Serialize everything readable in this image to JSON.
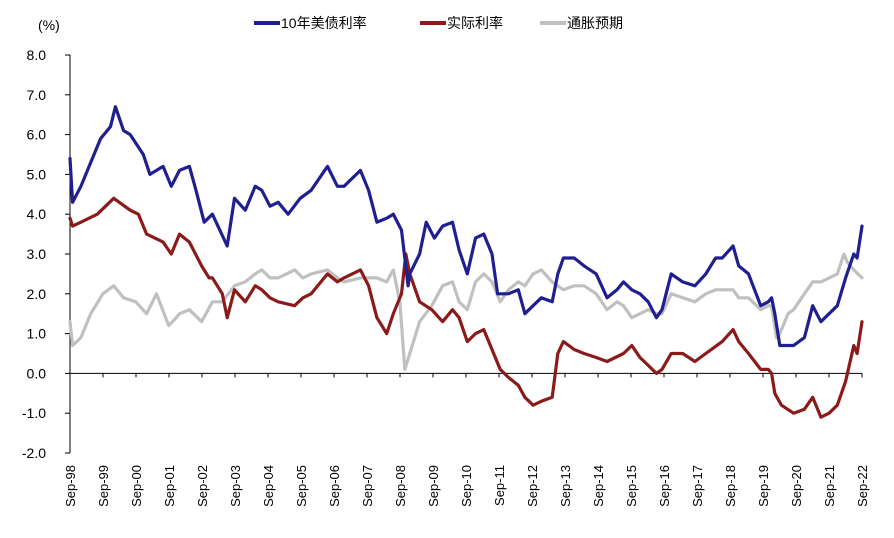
{
  "chart_data": {
    "type": "line",
    "title": "",
    "ylabel": "(%)",
    "xlabel": "",
    "ylim": [
      -2.0,
      8.0
    ],
    "yticks": [
      "8.0",
      "7.0",
      "6.0",
      "5.0",
      "4.0",
      "3.0",
      "2.0",
      "1.0",
      "0.0",
      "-1.0",
      "-2.0"
    ],
    "ytick_values": [
      8,
      7,
      6,
      5,
      4,
      3,
      2,
      1,
      0,
      -1,
      -2
    ],
    "negative_tick_color": "#e8262a",
    "categories": [
      "Sep-98",
      "Sep-99",
      "Sep-00",
      "Sep-01",
      "Sep-02",
      "Sep-03",
      "Sep-04",
      "Sep-05",
      "Sep-06",
      "Sep-07",
      "Sep-08",
      "Sep-09",
      "Sep-10",
      "Sep-11",
      "Sep-12",
      "Sep-13",
      "Sep-14",
      "Sep-15",
      "Sep-16",
      "Sep-17",
      "Sep-18",
      "Sep-19",
      "Sep-20",
      "Sep-21",
      "Sep-22"
    ],
    "x_start": 1998.67,
    "x_end": 2022.75,
    "legend": [
      "10年美债利率",
      "实际利率",
      "通胀预期"
    ],
    "legend_position": "top-center",
    "series": [
      {
        "name": "10年美债利率",
        "color": "#1f1f8f",
        "points": [
          [
            1998.67,
            5.4
          ],
          [
            1998.75,
            4.3
          ],
          [
            1999.0,
            4.7
          ],
          [
            1999.3,
            5.3
          ],
          [
            1999.6,
            5.9
          ],
          [
            1999.9,
            6.2
          ],
          [
            2000.05,
            6.7
          ],
          [
            2000.3,
            6.1
          ],
          [
            2000.5,
            6.0
          ],
          [
            2000.9,
            5.5
          ],
          [
            2001.1,
            5.0
          ],
          [
            2001.5,
            5.2
          ],
          [
            2001.75,
            4.7
          ],
          [
            2002.0,
            5.1
          ],
          [
            2002.3,
            5.2
          ],
          [
            2002.5,
            4.6
          ],
          [
            2002.75,
            3.8
          ],
          [
            2003.0,
            4.0
          ],
          [
            2003.45,
            3.2
          ],
          [
            2003.67,
            4.4
          ],
          [
            2004.0,
            4.1
          ],
          [
            2004.3,
            4.7
          ],
          [
            2004.5,
            4.6
          ],
          [
            2004.75,
            4.2
          ],
          [
            2005.0,
            4.3
          ],
          [
            2005.3,
            4.0
          ],
          [
            2005.67,
            4.4
          ],
          [
            2006.0,
            4.6
          ],
          [
            2006.5,
            5.2
          ],
          [
            2006.8,
            4.7
          ],
          [
            2007.0,
            4.7
          ],
          [
            2007.5,
            5.1
          ],
          [
            2007.75,
            4.6
          ],
          [
            2008.0,
            3.8
          ],
          [
            2008.3,
            3.9
          ],
          [
            2008.5,
            4.0
          ],
          [
            2008.75,
            3.6
          ],
          [
            2008.95,
            2.2
          ],
          [
            2009.0,
            2.5
          ],
          [
            2009.3,
            3.0
          ],
          [
            2009.5,
            3.8
          ],
          [
            2009.75,
            3.4
          ],
          [
            2010.0,
            3.7
          ],
          [
            2010.3,
            3.8
          ],
          [
            2010.5,
            3.1
          ],
          [
            2010.75,
            2.5
          ],
          [
            2011.0,
            3.4
          ],
          [
            2011.25,
            3.5
          ],
          [
            2011.5,
            3.0
          ],
          [
            2011.67,
            2.0
          ],
          [
            2012.0,
            2.0
          ],
          [
            2012.3,
            2.1
          ],
          [
            2012.5,
            1.5
          ],
          [
            2012.75,
            1.7
          ],
          [
            2013.0,
            1.9
          ],
          [
            2013.33,
            1.8
          ],
          [
            2013.5,
            2.5
          ],
          [
            2013.67,
            2.9
          ],
          [
            2013.9,
            2.9
          ],
          [
            2014.0,
            2.9
          ],
          [
            2014.3,
            2.7
          ],
          [
            2014.67,
            2.5
          ],
          [
            2015.0,
            1.9
          ],
          [
            2015.3,
            2.1
          ],
          [
            2015.5,
            2.3
          ],
          [
            2015.75,
            2.1
          ],
          [
            2016.0,
            2.0
          ],
          [
            2016.25,
            1.8
          ],
          [
            2016.5,
            1.4
          ],
          [
            2016.67,
            1.6
          ],
          [
            2016.95,
            2.5
          ],
          [
            2017.3,
            2.3
          ],
          [
            2017.67,
            2.2
          ],
          [
            2018.0,
            2.5
          ],
          [
            2018.3,
            2.9
          ],
          [
            2018.5,
            2.9
          ],
          [
            2018.83,
            3.2
          ],
          [
            2019.0,
            2.7
          ],
          [
            2019.3,
            2.5
          ],
          [
            2019.67,
            1.7
          ],
          [
            2019.9,
            1.8
          ],
          [
            2020.0,
            1.9
          ],
          [
            2020.1,
            1.5
          ],
          [
            2020.25,
            0.7
          ],
          [
            2020.67,
            0.7
          ],
          [
            2021.0,
            0.9
          ],
          [
            2021.25,
            1.7
          ],
          [
            2021.5,
            1.3
          ],
          [
            2021.75,
            1.5
          ],
          [
            2022.0,
            1.7
          ],
          [
            2022.25,
            2.4
          ],
          [
            2022.5,
            3.0
          ],
          [
            2022.6,
            2.9
          ],
          [
            2022.75,
            3.7
          ]
        ]
      },
      {
        "name": "实际利率",
        "color": "#8b1a1a",
        "points": [
          [
            1998.67,
            3.9
          ],
          [
            1998.75,
            3.7
          ],
          [
            1999.0,
            3.8
          ],
          [
            1999.5,
            4.0
          ],
          [
            2000.0,
            4.4
          ],
          [
            2000.5,
            4.1
          ],
          [
            2000.75,
            4.0
          ],
          [
            2001.0,
            3.5
          ],
          [
            2001.5,
            3.3
          ],
          [
            2001.75,
            3.0
          ],
          [
            2002.0,
            3.5
          ],
          [
            2002.3,
            3.3
          ],
          [
            2002.67,
            2.7
          ],
          [
            2002.9,
            2.4
          ],
          [
            2003.0,
            2.4
          ],
          [
            2003.3,
            2.0
          ],
          [
            2003.45,
            1.4
          ],
          [
            2003.67,
            2.1
          ],
          [
            2004.0,
            1.8
          ],
          [
            2004.3,
            2.2
          ],
          [
            2004.5,
            2.1
          ],
          [
            2004.75,
            1.9
          ],
          [
            2005.0,
            1.8
          ],
          [
            2005.5,
            1.7
          ],
          [
            2005.75,
            1.9
          ],
          [
            2006.0,
            2.0
          ],
          [
            2006.5,
            2.5
          ],
          [
            2006.8,
            2.3
          ],
          [
            2007.0,
            2.4
          ],
          [
            2007.5,
            2.6
          ],
          [
            2007.75,
            2.2
          ],
          [
            2008.0,
            1.4
          ],
          [
            2008.3,
            1.0
          ],
          [
            2008.5,
            1.5
          ],
          [
            2008.75,
            2.0
          ],
          [
            2008.88,
            3.0
          ],
          [
            2009.0,
            2.5
          ],
          [
            2009.3,
            1.8
          ],
          [
            2009.67,
            1.6
          ],
          [
            2010.0,
            1.3
          ],
          [
            2010.3,
            1.6
          ],
          [
            2010.5,
            1.4
          ],
          [
            2010.75,
            0.8
          ],
          [
            2011.0,
            1.0
          ],
          [
            2011.25,
            1.1
          ],
          [
            2011.5,
            0.6
          ],
          [
            2011.75,
            0.1
          ],
          [
            2012.0,
            -0.1
          ],
          [
            2012.3,
            -0.3
          ],
          [
            2012.5,
            -0.6
          ],
          [
            2012.75,
            -0.8
          ],
          [
            2013.0,
            -0.7
          ],
          [
            2013.33,
            -0.6
          ],
          [
            2013.5,
            0.5
          ],
          [
            2013.67,
            0.8
          ],
          [
            2014.0,
            0.6
          ],
          [
            2014.3,
            0.5
          ],
          [
            2014.67,
            0.4
          ],
          [
            2015.0,
            0.3
          ],
          [
            2015.5,
            0.5
          ],
          [
            2015.75,
            0.7
          ],
          [
            2016.0,
            0.4
          ],
          [
            2016.25,
            0.2
          ],
          [
            2016.5,
            0.0
          ],
          [
            2016.67,
            0.1
          ],
          [
            2016.95,
            0.5
          ],
          [
            2017.3,
            0.5
          ],
          [
            2017.67,
            0.3
          ],
          [
            2018.0,
            0.5
          ],
          [
            2018.5,
            0.8
          ],
          [
            2018.83,
            1.1
          ],
          [
            2019.0,
            0.8
          ],
          [
            2019.3,
            0.5
          ],
          [
            2019.67,
            0.1
          ],
          [
            2019.9,
            0.1
          ],
          [
            2020.0,
            0.0
          ],
          [
            2020.1,
            -0.5
          ],
          [
            2020.3,
            -0.8
          ],
          [
            2020.67,
            -1.0
          ],
          [
            2021.0,
            -0.9
          ],
          [
            2021.25,
            -0.6
          ],
          [
            2021.5,
            -1.1
          ],
          [
            2021.75,
            -1.0
          ],
          [
            2022.0,
            -0.8
          ],
          [
            2022.25,
            -0.2
          ],
          [
            2022.5,
            0.7
          ],
          [
            2022.6,
            0.5
          ],
          [
            2022.75,
            1.3
          ]
        ]
      },
      {
        "name": "通胀预期",
        "color": "#c0c0c0",
        "points": [
          [
            1998.67,
            1.3
          ],
          [
            1998.75,
            0.7
          ],
          [
            1999.0,
            0.9
          ],
          [
            1999.3,
            1.5
          ],
          [
            1999.67,
            2.0
          ],
          [
            2000.0,
            2.2
          ],
          [
            2000.3,
            1.9
          ],
          [
            2000.67,
            1.8
          ],
          [
            2001.0,
            1.5
          ],
          [
            2001.3,
            2.0
          ],
          [
            2001.67,
            1.2
          ],
          [
            2001.9,
            1.4
          ],
          [
            2002.0,
            1.5
          ],
          [
            2002.3,
            1.6
          ],
          [
            2002.67,
            1.3
          ],
          [
            2003.0,
            1.8
          ],
          [
            2003.3,
            1.8
          ],
          [
            2003.67,
            2.2
          ],
          [
            2004.0,
            2.3
          ],
          [
            2004.3,
            2.5
          ],
          [
            2004.5,
            2.6
          ],
          [
            2004.75,
            2.4
          ],
          [
            2005.0,
            2.4
          ],
          [
            2005.5,
            2.6
          ],
          [
            2005.75,
            2.4
          ],
          [
            2006.0,
            2.5
          ],
          [
            2006.5,
            2.6
          ],
          [
            2006.8,
            2.4
          ],
          [
            2007.0,
            2.3
          ],
          [
            2007.5,
            2.4
          ],
          [
            2007.75,
            2.4
          ],
          [
            2008.0,
            2.4
          ],
          [
            2008.3,
            2.3
          ],
          [
            2008.5,
            2.6
          ],
          [
            2008.7,
            1.8
          ],
          [
            2008.85,
            0.1
          ],
          [
            2009.0,
            0.5
          ],
          [
            2009.3,
            1.3
          ],
          [
            2009.67,
            1.7
          ],
          [
            2010.0,
            2.2
          ],
          [
            2010.3,
            2.3
          ],
          [
            2010.5,
            1.8
          ],
          [
            2010.75,
            1.6
          ],
          [
            2011.0,
            2.3
          ],
          [
            2011.25,
            2.5
          ],
          [
            2011.5,
            2.3
          ],
          [
            2011.75,
            1.8
          ],
          [
            2012.0,
            2.1
          ],
          [
            2012.3,
            2.3
          ],
          [
            2012.5,
            2.2
          ],
          [
            2012.75,
            2.5
          ],
          [
            2013.0,
            2.6
          ],
          [
            2013.33,
            2.3
          ],
          [
            2013.5,
            2.2
          ],
          [
            2013.67,
            2.1
          ],
          [
            2014.0,
            2.2
          ],
          [
            2014.3,
            2.2
          ],
          [
            2014.67,
            2.0
          ],
          [
            2015.0,
            1.6
          ],
          [
            2015.3,
            1.8
          ],
          [
            2015.5,
            1.7
          ],
          [
            2015.75,
            1.4
          ],
          [
            2016.0,
            1.5
          ],
          [
            2016.25,
            1.6
          ],
          [
            2016.5,
            1.5
          ],
          [
            2016.67,
            1.5
          ],
          [
            2016.95,
            2.0
          ],
          [
            2017.3,
            1.9
          ],
          [
            2017.67,
            1.8
          ],
          [
            2018.0,
            2.0
          ],
          [
            2018.3,
            2.1
          ],
          [
            2018.5,
            2.1
          ],
          [
            2018.83,
            2.1
          ],
          [
            2019.0,
            1.9
          ],
          [
            2019.3,
            1.9
          ],
          [
            2019.67,
            1.6
          ],
          [
            2019.9,
            1.7
          ],
          [
            2020.0,
            1.7
          ],
          [
            2020.15,
            0.9
          ],
          [
            2020.25,
            1.0
          ],
          [
            2020.5,
            1.5
          ],
          [
            2020.67,
            1.6
          ],
          [
            2021.0,
            2.0
          ],
          [
            2021.25,
            2.3
          ],
          [
            2021.5,
            2.3
          ],
          [
            2021.75,
            2.4
          ],
          [
            2022.0,
            2.5
          ],
          [
            2022.2,
            3.0
          ],
          [
            2022.3,
            2.8
          ],
          [
            2022.5,
            2.6
          ],
          [
            2022.75,
            2.4
          ]
        ]
      }
    ]
  }
}
